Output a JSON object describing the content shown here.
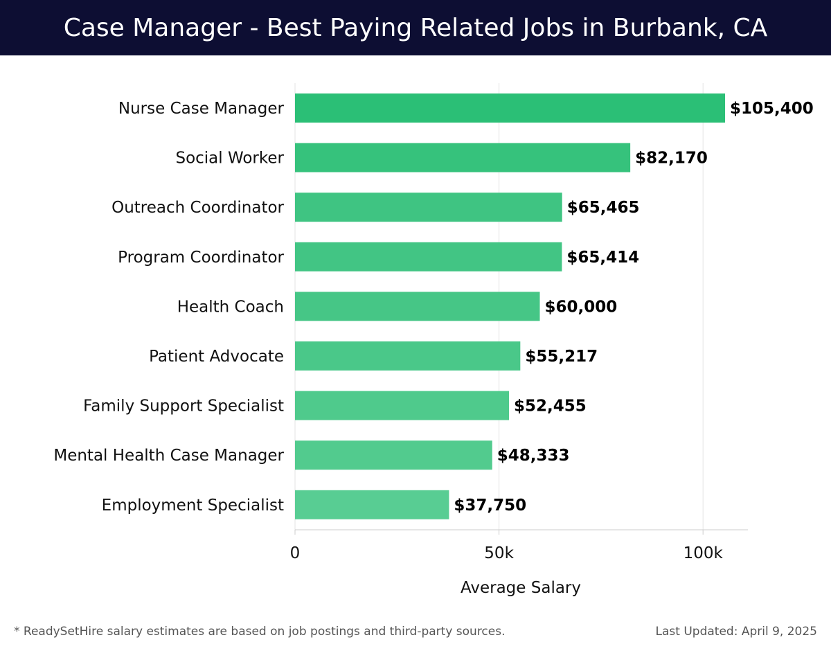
{
  "header": {
    "title": "Case Manager - Best Paying Related Jobs in Burbank, CA"
  },
  "chart_data": {
    "type": "bar",
    "orientation": "horizontal",
    "title": "Case Manager - Best Paying Related Jobs in Burbank, CA",
    "xlabel": "Average Salary",
    "ylabel": "",
    "xlim": [
      0,
      111000
    ],
    "xticks": [
      {
        "value": 0,
        "label": "0"
      },
      {
        "value": 50000,
        "label": "50k"
      },
      {
        "value": 100000,
        "label": "100k"
      }
    ],
    "grid": true,
    "categories": [
      "Nurse Case Manager",
      "Social Worker",
      "Outreach Coordinator",
      "Program Coordinator",
      "Health Coach",
      "Patient Advocate",
      "Family Support Specialist",
      "Mental Health Case Manager",
      "Employment Specialist"
    ],
    "values": [
      105400,
      82170,
      65465,
      65414,
      60000,
      55217,
      52455,
      48333,
      37750
    ],
    "value_labels": [
      "$105,400",
      "$82,170",
      "$65,465",
      "$65,414",
      "$60,000",
      "$55,217",
      "$52,455",
      "$48,333",
      "$37,750"
    ],
    "colors": [
      "#2bbf76",
      "#36c27c",
      "#3fc482",
      "#42c584",
      "#46c686",
      "#4ac889",
      "#4fca8c",
      "#52cb8e",
      "#58cd93"
    ]
  },
  "footer": {
    "note": "* ReadySetHire salary estimates are based on job postings and third-party sources.",
    "updated": "Last Updated: April 9, 2025"
  }
}
